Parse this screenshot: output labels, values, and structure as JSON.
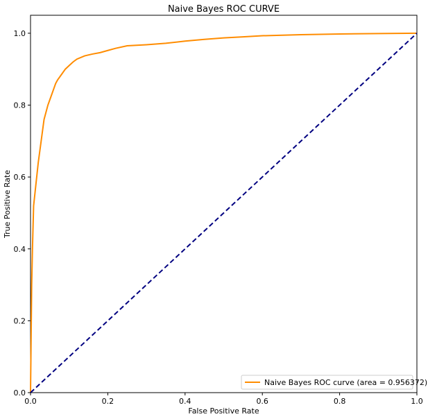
{
  "chart_data": {
    "type": "line",
    "title": "Naive Bayes ROC CURVE",
    "xlabel": "False Positive Rate",
    "ylabel": "True Positive Rate",
    "xlim": [
      0.0,
      1.0
    ],
    "ylim": [
      0.0,
      1.05
    ],
    "xticks": [
      "0.0",
      "0.2",
      "0.4",
      "0.6",
      "0.8",
      "1.0"
    ],
    "yticks": [
      "0.0",
      "0.2",
      "0.4",
      "0.6",
      "0.8",
      "1.0"
    ],
    "grid": false,
    "legend_position": "lower-right",
    "series": [
      {
        "name": "Naive Bayes ROC curve (area = 0.956372)",
        "color": "#ff8c00",
        "style": "solid",
        "x": [
          0.0,
          0.001,
          0.002,
          0.003,
          0.005,
          0.008,
          0.012,
          0.016,
          0.02,
          0.025,
          0.03,
          0.035,
          0.04,
          0.045,
          0.05,
          0.055,
          0.06,
          0.065,
          0.07,
          0.08,
          0.09,
          0.1,
          0.11,
          0.12,
          0.14,
          0.16,
          0.18,
          0.2,
          0.22,
          0.25,
          0.3,
          0.35,
          0.4,
          0.45,
          0.5,
          0.55,
          0.6,
          0.7,
          0.8,
          0.9,
          1.0
        ],
        "y": [
          0.0,
          0.1,
          0.2,
          0.3,
          0.4,
          0.52,
          0.56,
          0.6,
          0.64,
          0.68,
          0.72,
          0.76,
          0.78,
          0.8,
          0.815,
          0.83,
          0.845,
          0.86,
          0.87,
          0.885,
          0.9,
          0.91,
          0.92,
          0.928,
          0.937,
          0.942,
          0.946,
          0.952,
          0.958,
          0.965,
          0.968,
          0.972,
          0.978,
          0.983,
          0.987,
          0.99,
          0.993,
          0.996,
          0.998,
          0.999,
          1.0
        ]
      },
      {
        "name": "",
        "color": "#000080",
        "style": "dashed",
        "x": [
          0.0,
          1.0
        ],
        "y": [
          0.0,
          1.0
        ]
      }
    ]
  }
}
